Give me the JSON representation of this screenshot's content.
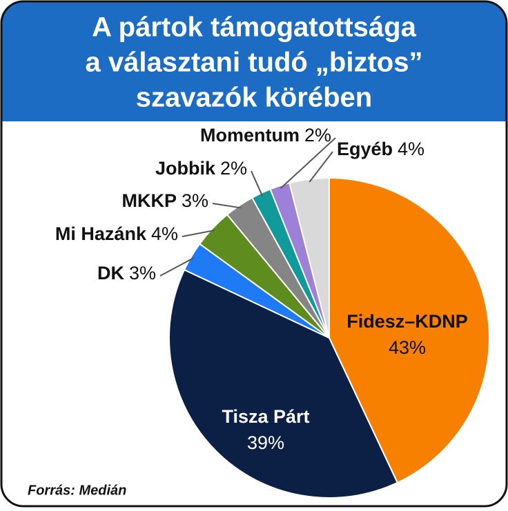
{
  "chart_data": {
    "type": "pie",
    "title": [
      "A pártok támogatottsága",
      "a választani tudó „biztos”",
      "szavazók körében"
    ],
    "categories": [
      "Fidesz–KDNP",
      "Tisza Párt",
      "DK",
      "Mi Hazánk",
      "MKKP",
      "Jobbik",
      "Momentum",
      "Egyéb"
    ],
    "values": [
      43,
      39,
      3,
      4,
      3,
      2,
      2,
      4
    ],
    "value_labels": [
      "43%",
      "39%",
      "3%",
      "4%",
      "3%",
      "2%",
      "2%",
      "4%"
    ],
    "colors": [
      "#f78000",
      "#0c1f45",
      "#1e7bf5",
      "#5e8c1f",
      "#858585",
      "#12999a",
      "#9d80d8",
      "#d9d9d9"
    ],
    "source": "Forrás: Medián"
  }
}
